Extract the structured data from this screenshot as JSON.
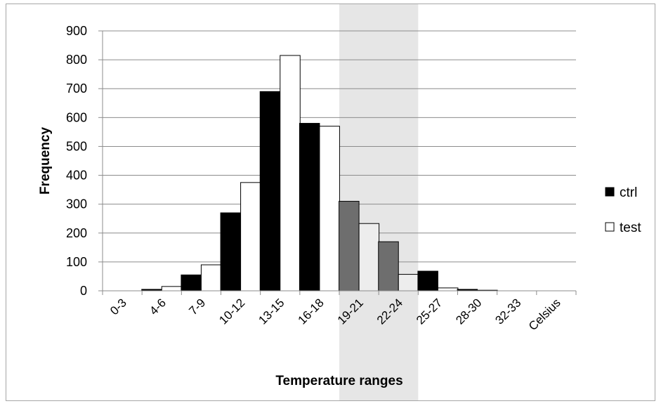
{
  "chart_data": {
    "type": "bar",
    "title": "",
    "xlabel": "Temperature ranges",
    "ylabel": "Frequency",
    "categories": [
      "0-3",
      "4-6",
      "7-9",
      "10-12",
      "13-15",
      "16-18",
      "19-21",
      "22-24",
      "25-27",
      "28-30",
      "32-33",
      "Celsius"
    ],
    "series": [
      {
        "name": "ctrl",
        "values": [
          0,
          5,
          55,
          270,
          690,
          580,
          310,
          170,
          68,
          5,
          0,
          0
        ]
      },
      {
        "name": "test",
        "values": [
          0,
          15,
          90,
          375,
          815,
          570,
          233,
          57,
          10,
          2,
          0,
          0
        ]
      }
    ],
    "ylim": [
      0,
      900
    ],
    "yticks": [
      0,
      100,
      200,
      300,
      400,
      500,
      600,
      700,
      800,
      900
    ],
    "grid": true,
    "legend_position": "right",
    "highlighted_categories": [
      "19-21",
      "22-24"
    ],
    "colors": {
      "ctrl": "#000000",
      "test": "#ffffff",
      "ctrl_highlighted": "#6e6e6e",
      "test_highlighted": "#ededed",
      "highlight_band": "#e6e6e6",
      "gridline": "#8c8c8c",
      "frame": "#a6a6a6"
    }
  }
}
